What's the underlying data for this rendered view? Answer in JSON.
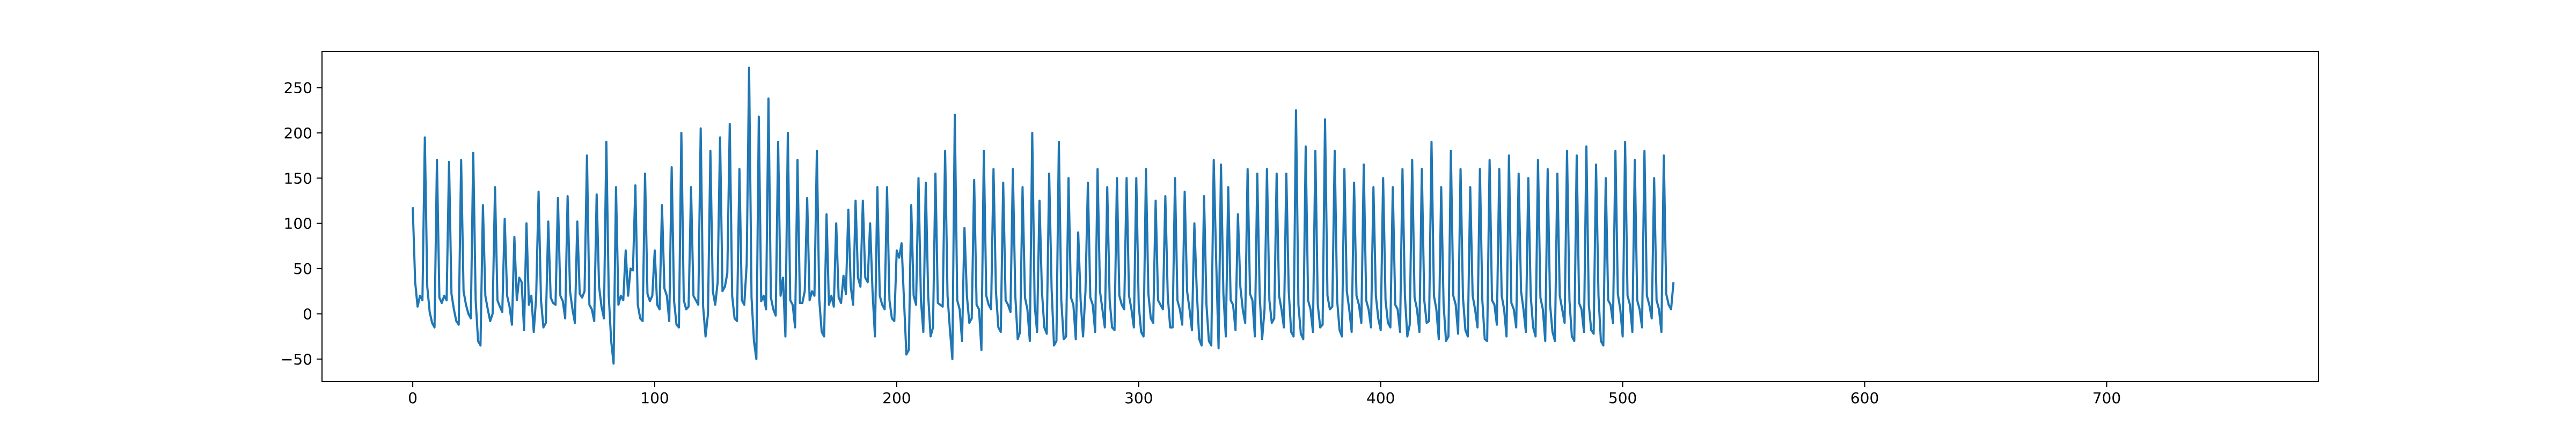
{
  "chart_data": {
    "type": "line",
    "title": "",
    "xlabel": "",
    "ylabel": "",
    "xlim": [
      -37.5,
      787.5
    ],
    "ylim": [
      -75,
      290
    ],
    "grid": false,
    "line_color": "#1f77b4",
    "x_ticks": [
      0,
      100,
      200,
      300,
      400,
      500,
      600,
      700
    ],
    "x_tick_labels": [
      "0",
      "100",
      "200",
      "300",
      "400",
      "500",
      "600",
      "700"
    ],
    "y_ticks": [
      -50,
      0,
      50,
      100,
      150,
      200,
      250
    ],
    "y_tick_labels": [
      "−50",
      "0",
      "50",
      "100",
      "150",
      "200",
      "250"
    ],
    "series": [
      {
        "name": "",
        "color": "#1f77b4",
        "x_start": 0,
        "x_step": 1,
        "values": [
          118,
          35,
          8,
          20,
          15,
          195,
          30,
          2,
          -10,
          -15,
          170,
          18,
          12,
          20,
          15,
          168,
          22,
          5,
          -8,
          -12,
          170,
          25,
          10,
          0,
          -5,
          178,
          15,
          -30,
          -35,
          120,
          20,
          5,
          -8,
          0,
          140,
          15,
          8,
          2,
          105,
          20,
          8,
          -12,
          85,
          15,
          40,
          35,
          -18,
          100,
          10,
          20,
          -20,
          18,
          135,
          15,
          -15,
          -10,
          102,
          18,
          12,
          10,
          128,
          20,
          14,
          -5,
          130,
          25,
          5,
          -10,
          102,
          22,
          18,
          25,
          175,
          10,
          5,
          -8,
          132,
          30,
          8,
          -5,
          190,
          20,
          -30,
          -55,
          140,
          10,
          20,
          15,
          70,
          20,
          50,
          48,
          142,
          10,
          -5,
          -8,
          155,
          22,
          14,
          20,
          70,
          10,
          5,
          120,
          28,
          20,
          -8,
          162,
          14,
          -12,
          -15,
          200,
          15,
          5,
          8,
          140,
          20,
          15,
          10,
          205,
          8,
          -25,
          0,
          180,
          25,
          10,
          35,
          195,
          25,
          30,
          45,
          210,
          20,
          -5,
          -8,
          160,
          15,
          10,
          55,
          272,
          18,
          -30,
          -50,
          218,
          14,
          20,
          5,
          238,
          18,
          5,
          -2,
          190,
          20,
          40,
          -25,
          200,
          15,
          10,
          -15,
          170,
          12,
          12,
          25,
          128,
          15,
          25,
          20,
          180,
          15,
          -20,
          -25,
          110,
          10,
          20,
          8,
          100,
          18,
          12,
          42,
          22,
          115,
          30,
          10,
          125,
          40,
          30,
          125,
          40,
          35,
          100,
          25,
          -25,
          140,
          20,
          10,
          5,
          140,
          15,
          -5,
          -8,
          70,
          62,
          78,
          15,
          -45,
          -40,
          120,
          20,
          10,
          150,
          15,
          -20,
          145,
          20,
          -25,
          -15,
          155,
          12,
          10,
          8,
          180,
          20,
          -18,
          -50,
          220,
          15,
          5,
          -30,
          95,
          20,
          -10,
          -5,
          148,
          10,
          5,
          -40,
          180,
          20,
          10,
          5,
          160,
          25,
          -15,
          -20,
          145,
          15,
          10,
          2,
          160,
          20,
          -28,
          -20,
          140,
          18,
          5,
          -30,
          200,
          10,
          -20,
          125,
          25,
          -15,
          -22,
          155,
          28,
          -35,
          -30,
          190,
          15,
          -28,
          -25,
          150,
          18,
          10,
          -28,
          90,
          15,
          -25,
          25,
          145,
          18,
          10,
          -20,
          160,
          25,
          5,
          -15,
          140,
          15,
          -15,
          -18,
          150,
          20,
          10,
          5,
          150,
          20,
          5,
          -15,
          150,
          10,
          -20,
          -25,
          160,
          22,
          -5,
          -10,
          125,
          15,
          10,
          5,
          130,
          20,
          -15,
          -15,
          150,
          15,
          5,
          -12,
          135,
          25,
          5,
          -18,
          100,
          25,
          -28,
          -35,
          130,
          10,
          -30,
          -35,
          170,
          60,
          -38,
          165,
          22,
          -25,
          140,
          15,
          10,
          -18,
          110,
          30,
          5,
          -10,
          160,
          22,
          15,
          -25,
          155,
          20,
          -28,
          5,
          160,
          15,
          -10,
          -5,
          155,
          20,
          5,
          -15,
          155,
          25,
          -20,
          -25,
          225,
          10,
          -22,
          -28,
          185,
          15,
          5,
          -20,
          180,
          10,
          -15,
          -12,
          215,
          20,
          5,
          8,
          180,
          15,
          -18,
          -25,
          160,
          25,
          5,
          -20,
          145,
          20,
          10,
          -10,
          165,
          15,
          5,
          -15,
          140,
          20,
          -5,
          -18,
          150,
          15,
          -10,
          -15,
          140,
          10,
          5,
          -20,
          160,
          20,
          -25,
          -12,
          170,
          18,
          5,
          -20,
          160,
          15,
          -10,
          -8,
          190,
          20,
          5,
          -28,
          140,
          10,
          -30,
          -25,
          180,
          20,
          10,
          -22,
          160,
          18,
          -18,
          -25,
          140,
          20,
          5,
          -15,
          160,
          15,
          -28,
          -30,
          170,
          15,
          10,
          -12,
          160,
          20,
          5,
          -25,
          175,
          12,
          5,
          -15,
          155,
          25,
          5,
          -20,
          150,
          20,
          -15,
          -25,
          170,
          18,
          5,
          -30,
          160,
          10,
          -20,
          -30,
          155,
          20,
          5,
          -10,
          180,
          15,
          -25,
          -30,
          175,
          12,
          5,
          -20,
          185,
          10,
          -18,
          -22,
          165,
          20,
          -30,
          -35,
          150,
          15,
          10,
          -10,
          180,
          22,
          5,
          -25,
          190,
          20,
          10,
          -20,
          170,
          15,
          5,
          -15,
          180,
          20,
          10,
          -5,
          150,
          15,
          5,
          -20,
          175,
          22,
          10,
          5,
          35
        ],
        "values_note_end": ""
      }
    ]
  }
}
